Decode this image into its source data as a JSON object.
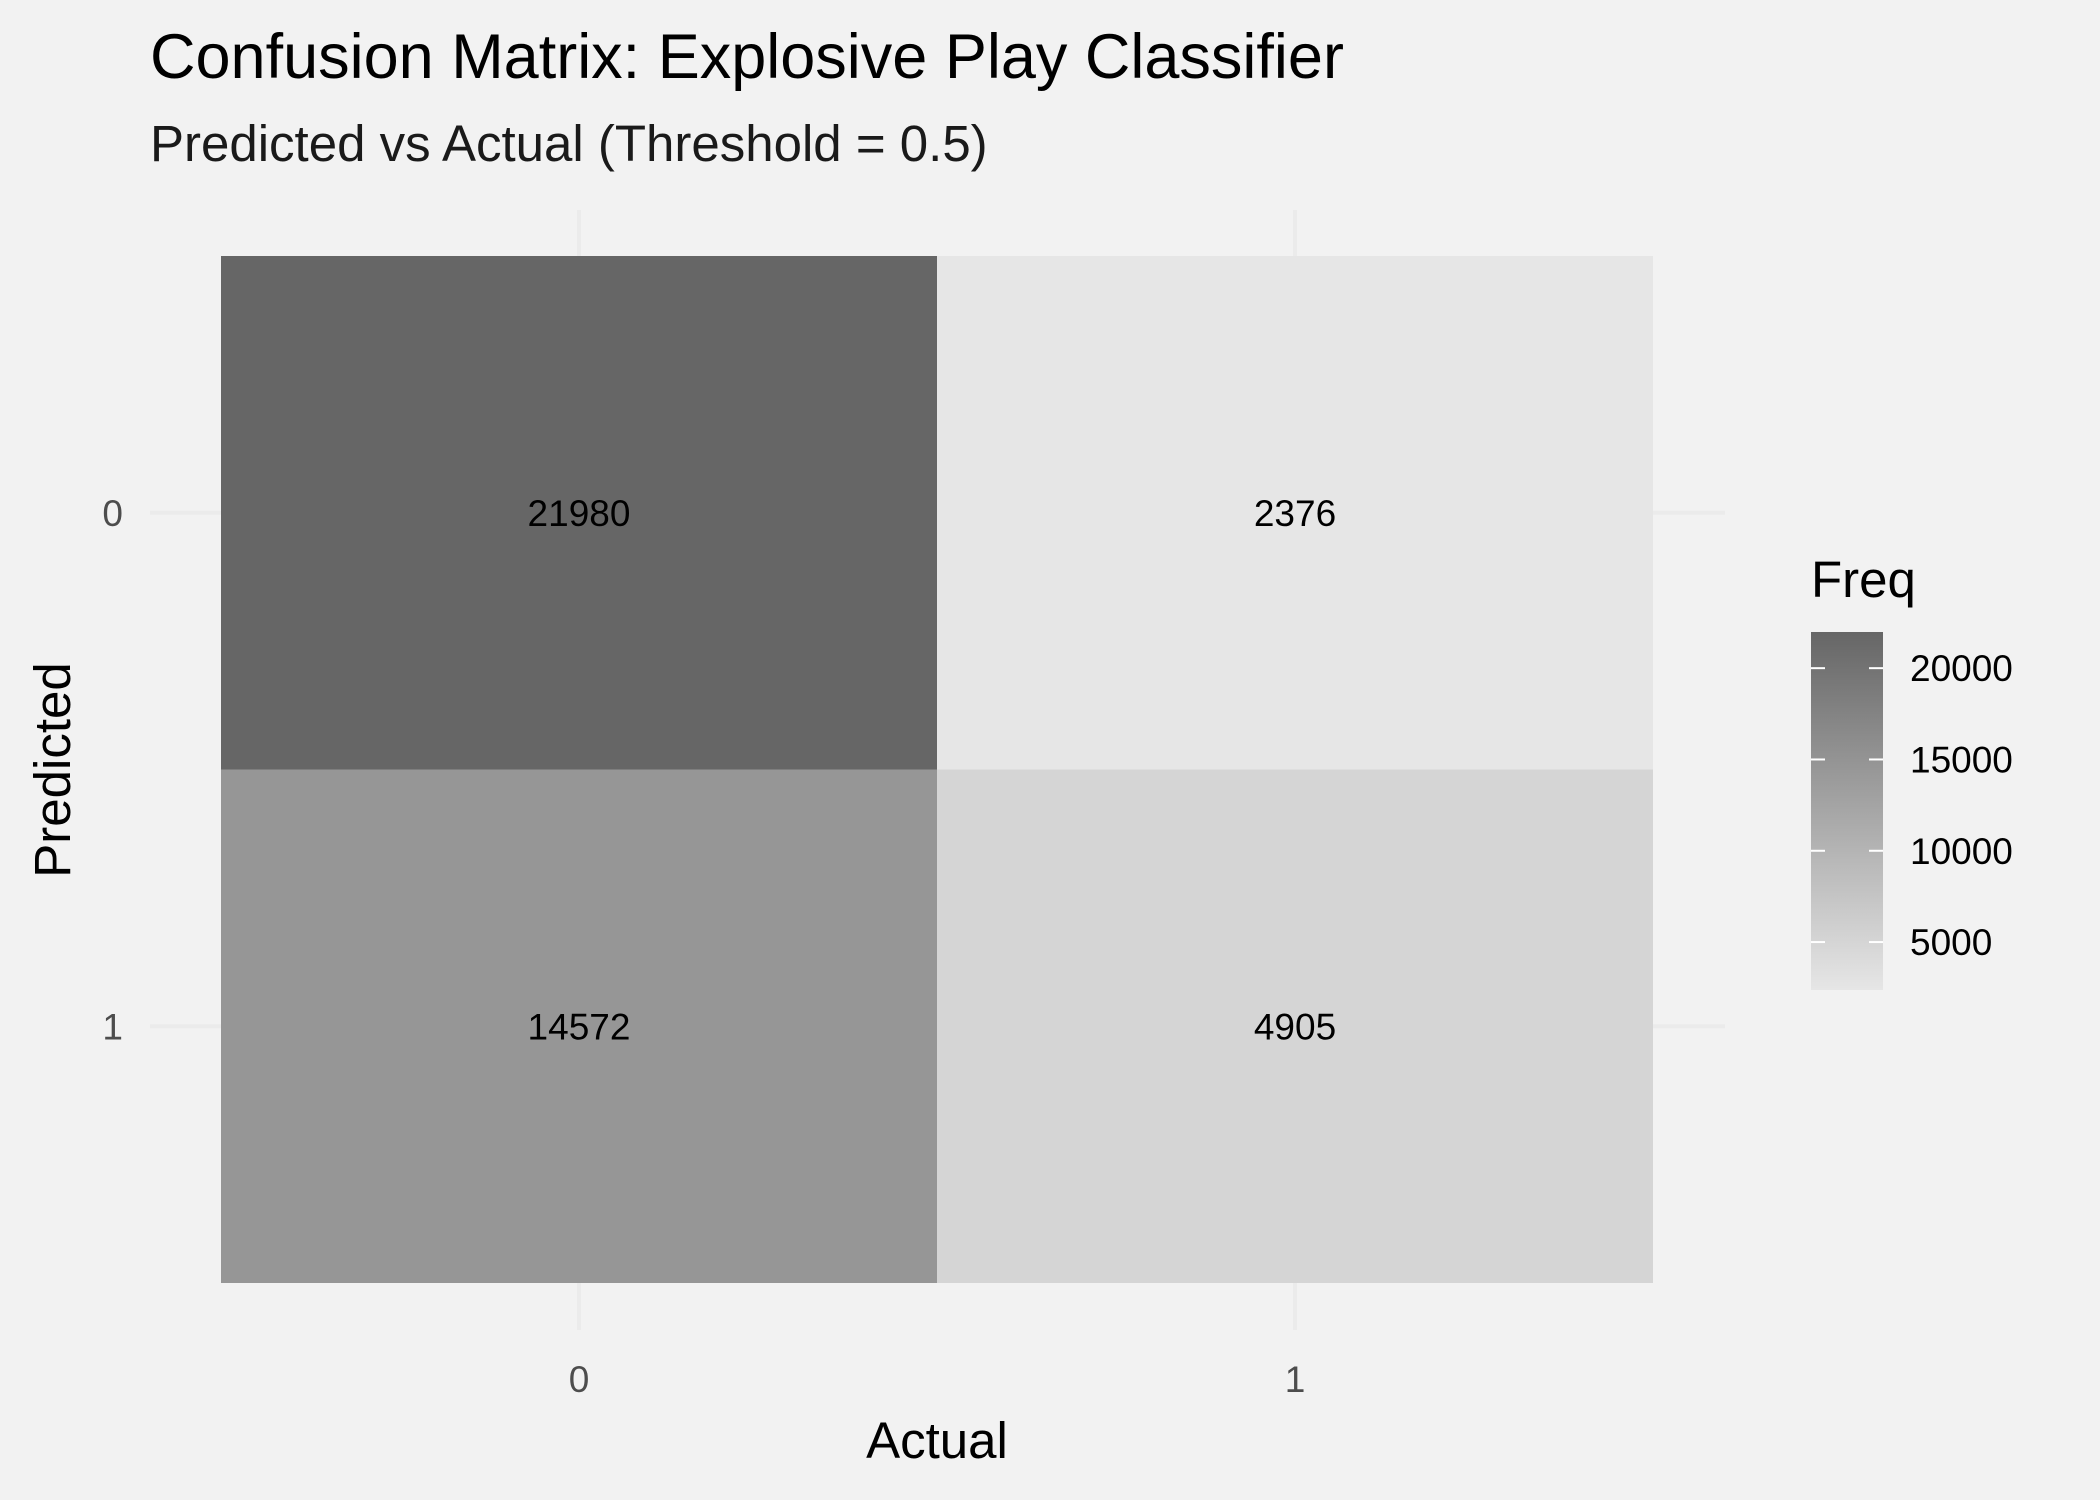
{
  "chart_data": {
    "type": "heatmap",
    "title": "Confusion Matrix: Explosive Play Classifier",
    "subtitle": "Predicted vs Actual (Threshold = 0.5)",
    "xlabel": "Actual",
    "ylabel": "Predicted",
    "x_categories": [
      "0",
      "1"
    ],
    "y_categories": [
      "0",
      "1"
    ],
    "cells": [
      {
        "actual": "0",
        "predicted": "0",
        "value": 21980
      },
      {
        "actual": "1",
        "predicted": "0",
        "value": 2376
      },
      {
        "actual": "0",
        "predicted": "1",
        "value": 14572
      },
      {
        "actual": "1",
        "predicted": "1",
        "value": 4905
      }
    ],
    "legend": {
      "title": "Freq",
      "ticks": [
        5000,
        10000,
        15000,
        20000
      ],
      "range": [
        2376,
        21980
      ],
      "low_color": "#e6e6e6",
      "high_color": "#666666",
      "placement": "right"
    },
    "grid": true
  }
}
